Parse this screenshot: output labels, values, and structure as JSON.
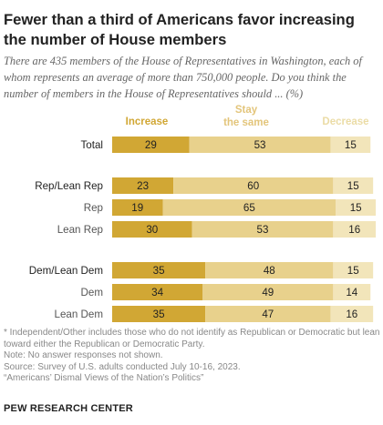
{
  "title": "Fewer than a third of Americans favor increasing the number of House members",
  "subtitle": "There are 435 members of the House of Representatives in Washington, each of whom represents an average of more than 750,000 people. Do you think the number of members in the House of Representatives should ... (%)",
  "colors": {
    "increase": "#D1A734",
    "stay": "#E8D18C",
    "decrease": "#F2E5BA",
    "text": "#222222"
  },
  "chart_data": {
    "type": "bar",
    "stacked": true,
    "orientation": "horizontal",
    "categories": [
      "Total",
      "Rep/Lean Rep",
      "Rep",
      "Lean Rep",
      "Dem/Lean Dem",
      "Dem",
      "Lean Dem"
    ],
    "series": [
      {
        "name": "Increase",
        "values": [
          29,
          23,
          19,
          30,
          35,
          34,
          35
        ]
      },
      {
        "name": "Stay the same",
        "values": [
          53,
          60,
          65,
          53,
          48,
          49,
          47
        ]
      },
      {
        "name": "Decrease",
        "values": [
          15,
          15,
          15,
          16,
          15,
          14,
          16
        ]
      }
    ],
    "legend": "top"
  },
  "notes": [
    "* Independent/Other includes those who do not identify as Republican or Democratic but lean toward either the Republican or Democratic Party.",
    "Note: No answer responses not shown.",
    "Source: Survey of U.S. adults conducted July 10-16, 2023.",
    "“Americans’ Dismal Views of the Nation’s Politics”"
  ],
  "source_org": "PEW RESEARCH CENTER"
}
